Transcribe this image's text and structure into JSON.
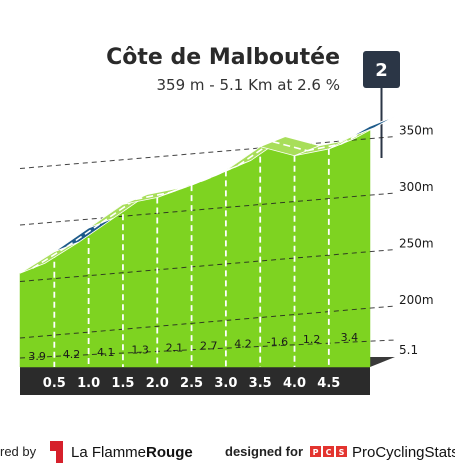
{
  "climb": {
    "name": "Côte de Malboutée",
    "stats": "359 m - 5.1 Km at 2.6 %",
    "category": "2"
  },
  "altitude_labels": [
    "350m",
    "300m",
    "250m",
    "200m"
  ],
  "base_label": "5.1",
  "segment_grades": [
    "3.9",
    "4.2",
    "4.1",
    "1.3",
    "2.1",
    "2.7",
    "4.2",
    "-1.6",
    "1.2",
    "3.4"
  ],
  "km_labels": [
    "0.5",
    "1.0",
    "1.5",
    "2.0",
    "2.5",
    "3.0",
    "3.5",
    "4.0",
    "4.5"
  ],
  "footer": {
    "powered_prefix": "red by",
    "flamme_logo_letter": "1",
    "flamme_name_regular": "La Flamme",
    "flamme_name_bold": "Rouge",
    "designed_for": "designed for",
    "pcs_logo": "PCS",
    "pcs_name": "ProCyclingStats"
  },
  "colors": {
    "moderate_grade": "#7ed321",
    "steep_grade": "#1d5a8a",
    "road_band": "#2b2b2b",
    "base_side": "#a39e96",
    "badge": "#2b3646",
    "flamme_red": "#d6202b",
    "pcs_red": "#e3342f"
  },
  "chart_data": {
    "type": "area",
    "title": "Côte de Malboutée",
    "subtitle": "359 m - 5.1 Km at 2.6 %",
    "x_unit": "km",
    "y_unit": "m",
    "segments": [
      {
        "start_km": 0.0,
        "end_km": 0.5,
        "grade": 3.9
      },
      {
        "start_km": 0.5,
        "end_km": 1.0,
        "grade": 4.2
      },
      {
        "start_km": 1.0,
        "end_km": 1.5,
        "grade": 4.1
      },
      {
        "start_km": 1.5,
        "end_km": 2.0,
        "grade": 1.3
      },
      {
        "start_km": 2.0,
        "end_km": 2.5,
        "grade": 2.1
      },
      {
        "start_km": 2.5,
        "end_km": 3.0,
        "grade": 2.7
      },
      {
        "start_km": 3.0,
        "end_km": 3.5,
        "grade": 4.2
      },
      {
        "start_km": 3.5,
        "end_km": 4.0,
        "grade": -1.6
      },
      {
        "start_km": 4.0,
        "end_km": 4.5,
        "grade": 1.2
      },
      {
        "start_km": 4.5,
        "end_km": 5.1,
        "grade": 3.4
      }
    ],
    "steep_segments_km": [
      [
        0.5,
        1.0
      ],
      [
        2.5,
        3.0
      ],
      [
        4.8,
        5.1
      ]
    ],
    "profile_points": [
      {
        "km": 0.0,
        "alt": 229
      },
      {
        "km": 0.5,
        "alt": 248
      },
      {
        "km": 1.0,
        "alt": 269
      },
      {
        "km": 1.5,
        "alt": 290
      },
      {
        "km": 2.0,
        "alt": 296
      },
      {
        "km": 2.5,
        "alt": 307
      },
      {
        "km": 3.0,
        "alt": 320
      },
      {
        "km": 3.5,
        "alt": 341
      },
      {
        "km": 4.0,
        "alt": 333
      },
      {
        "km": 4.5,
        "alt": 339
      },
      {
        "km": 5.1,
        "alt": 359
      }
    ],
    "y_ticks": [
      200,
      250,
      300,
      350
    ],
    "x_ticks": [
      0.5,
      1.0,
      1.5,
      2.0,
      2.5,
      3.0,
      3.5,
      4.0,
      4.5
    ],
    "grid": true
  }
}
